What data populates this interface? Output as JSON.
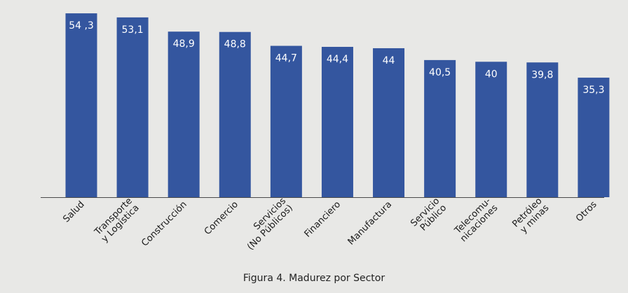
{
  "caption": "Figura 4. Madurez por Sector",
  "colors": {
    "bar": "#34569f",
    "axis": "#4a4a4a",
    "label_text": "#ffffff",
    "tick_text": "#1a1a1a",
    "background": "#e8e8e6"
  },
  "chart_data": {
    "type": "bar",
    "title": "",
    "xlabel": "",
    "ylabel": "",
    "ylim": [
      0,
      57
    ],
    "grid": false,
    "categories": [
      [
        "Salud"
      ],
      [
        "Transporte",
        "y Logística"
      ],
      [
        "Construcción"
      ],
      [
        "Comercio"
      ],
      [
        "Servicios",
        "(No Públicos)"
      ],
      [
        "Financiero"
      ],
      [
        "Manufactura"
      ],
      [
        "Servicio",
        "Público"
      ],
      [
        "Telecomu-",
        "nicaciones"
      ],
      [
        "Petróleo",
        "y minas"
      ],
      [
        "Otros"
      ]
    ],
    "values": [
      54.3,
      53.1,
      48.9,
      48.8,
      44.7,
      44.4,
      44,
      40.5,
      40,
      39.8,
      35.3
    ],
    "data_labels": [
      "54 ,3",
      "53,1",
      "48,9",
      "48,8",
      "44,7",
      "44,4",
      "44",
      "40,5",
      "40",
      "39,8",
      "35,3"
    ]
  }
}
